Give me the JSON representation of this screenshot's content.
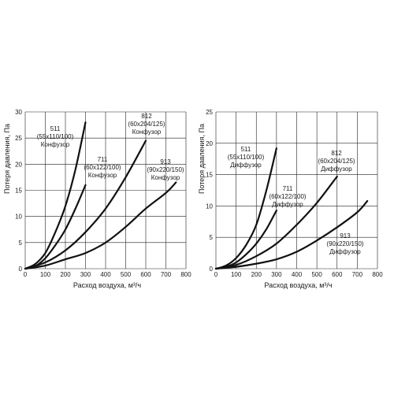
{
  "chart_data": [
    {
      "type": "line",
      "title": "",
      "xlabel": "Расход воздуха, м³/ч",
      "ylabel": "Потеря давления, Па",
      "xlim": [
        0,
        800
      ],
      "ylim": [
        0,
        30
      ],
      "xticks": [
        "0",
        "100",
        "200",
        "300",
        "400",
        "500",
        "600",
        "700",
        "800"
      ],
      "yticks": [
        "0",
        "5",
        "10",
        "15",
        "20",
        "25",
        "30"
      ],
      "grid": true,
      "series": [
        {
          "name": "511",
          "note": [
            "511",
            "(55x110/100)",
            "Конфузор"
          ],
          "points": [
            [
              0,
              0
            ],
            [
              50,
              0.9
            ],
            [
              100,
              3
            ],
            [
              150,
              7
            ],
            [
              200,
              12
            ],
            [
              250,
              19
            ],
            [
              300,
              28
            ]
          ]
        },
        {
          "name": "711",
          "note": [
            "711",
            "(60x122/100)",
            "Конфузор"
          ],
          "points": [
            [
              0,
              0
            ],
            [
              50,
              0.5
            ],
            [
              100,
              2
            ],
            [
              150,
              4.5
            ],
            [
              200,
              7.5
            ],
            [
              250,
              11.5
            ],
            [
              300,
              16
            ]
          ]
        },
        {
          "name": "812",
          "note": [
            "812",
            "(60x204/125)",
            "Конфузор"
          ],
          "points": [
            [
              0,
              0
            ],
            [
              100,
              1.2
            ],
            [
              200,
              3.5
            ],
            [
              300,
              7
            ],
            [
              400,
              11.5
            ],
            [
              500,
              17.5
            ],
            [
              600,
              24.5
            ]
          ]
        },
        {
          "name": "913",
          "note": [
            "913",
            "(90x220/150)",
            "Конфузор"
          ],
          "points": [
            [
              0,
              0
            ],
            [
              100,
              0.6
            ],
            [
              200,
              1.8
            ],
            [
              300,
              3
            ],
            [
              400,
              5
            ],
            [
              500,
              8
            ],
            [
              600,
              11.5
            ],
            [
              700,
              14.5
            ],
            [
              750,
              16.5
            ]
          ]
        }
      ]
    },
    {
      "type": "line",
      "title": "",
      "xlabel": "Расход воздуха, м³/ч",
      "ylabel": "Потеря давления, Па",
      "xlim": [
        0,
        800
      ],
      "ylim": [
        0,
        25
      ],
      "xticks": [
        "0",
        "100",
        "200",
        "300",
        "400",
        "500",
        "600",
        "700",
        "800"
      ],
      "yticks": [
        "0",
        "5",
        "10",
        "15",
        "20",
        "25"
      ],
      "grid": true,
      "series": [
        {
          "name": "511",
          "note": [
            "511",
            "(55x110/100)",
            "Диффузор"
          ],
          "points": [
            [
              0,
              0
            ],
            [
              50,
              0.5
            ],
            [
              100,
              1.7
            ],
            [
              150,
              3.8
            ],
            [
              200,
              7
            ],
            [
              250,
              12.5
            ],
            [
              300,
              19.2
            ]
          ]
        },
        {
          "name": "711",
          "note": [
            "711",
            "(60x122/100)",
            "Диффузор"
          ],
          "points": [
            [
              0,
              0
            ],
            [
              50,
              0.3
            ],
            [
              100,
              1
            ],
            [
              150,
              2.3
            ],
            [
              200,
              4
            ],
            [
              250,
              6.3
            ],
            [
              300,
              9.3
            ]
          ]
        },
        {
          "name": "812",
          "note": [
            "812",
            "(60x204/125)",
            "Диффузор"
          ],
          "points": [
            [
              0,
              0
            ],
            [
              100,
              0.6
            ],
            [
              200,
              2
            ],
            [
              300,
              4
            ],
            [
              400,
              7
            ],
            [
              500,
              10.5
            ],
            [
              600,
              14.7
            ]
          ]
        },
        {
          "name": "913",
          "note": [
            "913",
            "(90x220/150)",
            "Диффузор"
          ],
          "points": [
            [
              0,
              0
            ],
            [
              100,
              0.3
            ],
            [
              200,
              0.8
            ],
            [
              300,
              1.5
            ],
            [
              400,
              2.7
            ],
            [
              500,
              4.5
            ],
            [
              600,
              6.6
            ],
            [
              700,
              9
            ],
            [
              750,
              10.8
            ]
          ]
        }
      ]
    }
  ]
}
